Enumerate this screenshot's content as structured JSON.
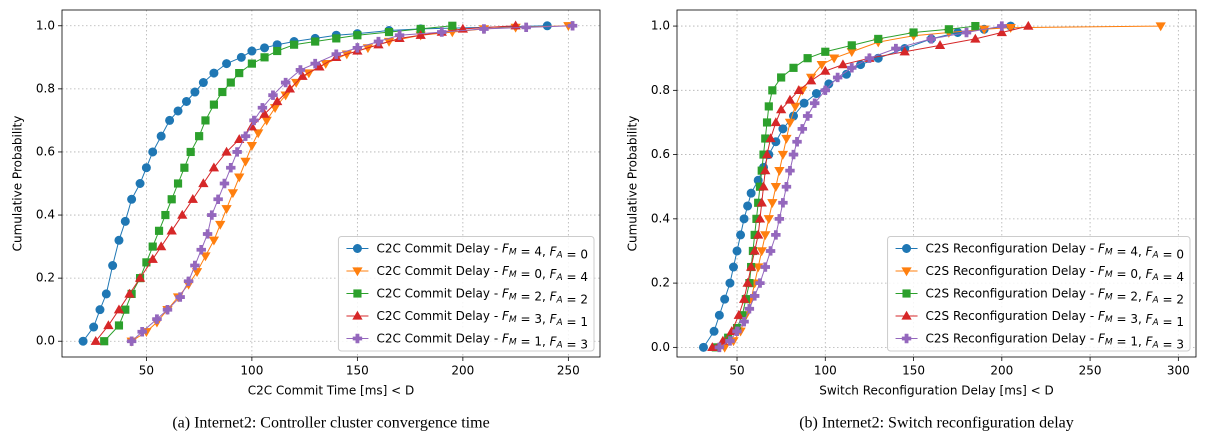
{
  "chart_data": [
    {
      "type": "line",
      "x_label": "C2C Commit Time [ms] < D",
      "y_label": "Cumulative Probability",
      "caption": "(a) Internet2: Controller cluster convergence time",
      "xlim": [
        10,
        265
      ],
      "ylim": [
        -0.05,
        1.05
      ],
      "xticks": [
        50,
        100,
        150,
        200,
        250
      ],
      "yticks": [
        {
          "value": 0,
          "label": "0.0"
        },
        0.2,
        0.4,
        0.6,
        0.8,
        {
          "value": 1,
          "label": "1.0"
        }
      ],
      "grid": true,
      "legend": "lower right",
      "series": [
        {
          "name": "C2C Commit Delay - F_M = 4, F_A = 0",
          "color": "#1f77b4",
          "marker": "o",
          "x": [
            20,
            25,
            28,
            31,
            34,
            37,
            40,
            43,
            47,
            50,
            53,
            57,
            61,
            65,
            69,
            73,
            77,
            82,
            88,
            95,
            100,
            106,
            112,
            120,
            130,
            140,
            150,
            165,
            180,
            240
          ],
          "values": [
            0,
            0.045,
            0.1,
            0.15,
            0.24,
            0.32,
            0.38,
            0.45,
            0.5,
            0.55,
            0.6,
            0.65,
            0.7,
            0.73,
            0.76,
            0.79,
            0.82,
            0.85,
            0.88,
            0.9,
            0.92,
            0.93,
            0.94,
            0.95,
            0.96,
            0.97,
            0.975,
            0.985,
            0.99,
            1.0
          ]
        },
        {
          "name": "C2C Commit Delay - F_M = 0, F_A = 4",
          "color": "#ff7f0e",
          "marker": "v",
          "x": [
            43,
            50,
            55,
            60,
            65,
            70,
            74,
            78,
            82,
            85,
            88,
            91,
            94,
            97,
            100,
            103,
            107,
            111,
            116,
            121,
            127,
            135,
            145,
            155,
            165,
            180,
            195,
            210,
            225,
            250
          ],
          "values": [
            0,
            0.03,
            0.06,
            0.1,
            0.14,
            0.18,
            0.22,
            0.27,
            0.32,
            0.37,
            0.42,
            0.47,
            0.52,
            0.57,
            0.62,
            0.66,
            0.7,
            0.74,
            0.78,
            0.82,
            0.85,
            0.88,
            0.91,
            0.93,
            0.95,
            0.97,
            0.98,
            0.99,
            0.995,
            1.0
          ]
        },
        {
          "name": "C2C Commit Delay - F_M = 2, F_A = 2",
          "color": "#2ca02c",
          "marker": "s",
          "x": [
            30,
            37,
            40,
            43,
            47,
            50,
            53,
            56,
            59,
            62,
            65,
            68,
            71,
            75,
            78,
            82,
            86,
            90,
            94,
            100,
            106,
            112,
            120,
            130,
            140,
            150,
            165,
            180,
            195
          ],
          "values": [
            0,
            0.05,
            0.1,
            0.15,
            0.2,
            0.25,
            0.3,
            0.35,
            0.4,
            0.45,
            0.5,
            0.55,
            0.6,
            0.65,
            0.7,
            0.75,
            0.79,
            0.82,
            0.85,
            0.88,
            0.9,
            0.92,
            0.94,
            0.95,
            0.96,
            0.97,
            0.98,
            0.99,
            1.0
          ]
        },
        {
          "name": "C2C Commit Delay - F_M = 3, F_A = 1",
          "color": "#d62728",
          "marker": "^",
          "x": [
            26,
            32,
            37,
            42,
            47,
            53,
            57,
            62,
            67,
            72,
            77,
            82,
            88,
            94,
            100,
            106,
            112,
            118,
            124,
            132,
            140,
            150,
            160,
            170,
            180,
            190,
            200,
            225
          ],
          "values": [
            0,
            0.05,
            0.1,
            0.15,
            0.2,
            0.26,
            0.3,
            0.35,
            0.4,
            0.45,
            0.5,
            0.55,
            0.6,
            0.64,
            0.68,
            0.72,
            0.76,
            0.8,
            0.84,
            0.87,
            0.9,
            0.92,
            0.94,
            0.96,
            0.97,
            0.98,
            0.99,
            1.0
          ]
        },
        {
          "name": "C2C Commit Delay - F_M = 1, F_A = 3",
          "color": "#9467bd",
          "marker": "P",
          "x": [
            43,
            48,
            55,
            60,
            66,
            70,
            73,
            76,
            79,
            81,
            84,
            87,
            90,
            93,
            97,
            101,
            105,
            110,
            116,
            123,
            130,
            140,
            150,
            160,
            170,
            190,
            210,
            230,
            252
          ],
          "values": [
            0,
            0.03,
            0.07,
            0.1,
            0.14,
            0.19,
            0.24,
            0.29,
            0.34,
            0.4,
            0.45,
            0.5,
            0.55,
            0.6,
            0.65,
            0.7,
            0.74,
            0.78,
            0.82,
            0.86,
            0.88,
            0.91,
            0.93,
            0.95,
            0.97,
            0.98,
            0.99,
            0.995,
            1.0
          ]
        }
      ]
    },
    {
      "type": "line",
      "x_label": "Switch Reconfiguration Delay [ms] < D",
      "y_label": "Cumulative Probability",
      "caption": "(b) Internet2: Switch reconfiguration delay",
      "xlim": [
        16,
        310
      ],
      "ylim": [
        -0.03,
        1.05
      ],
      "xticks": [
        50,
        100,
        150,
        200,
        250,
        300
      ],
      "yticks": [
        {
          "value": 0,
          "label": "0.0"
        },
        0.2,
        0.4,
        0.6,
        0.8,
        {
          "value": 1,
          "label": "1.0"
        }
      ],
      "grid": true,
      "legend": "lower right",
      "series": [
        {
          "name": "C2S Reconfiguration Delay - F_M = 4, F_A = 0",
          "color": "#1f77b4",
          "marker": "o",
          "x": [
            31,
            37,
            40,
            43,
            46,
            48,
            50,
            52,
            54,
            56,
            58,
            62,
            65,
            68,
            72,
            76,
            82,
            88,
            95,
            102,
            112,
            120,
            130,
            145,
            160,
            175,
            190,
            205
          ],
          "values": [
            0,
            0.05,
            0.1,
            0.15,
            0.2,
            0.25,
            0.3,
            0.35,
            0.4,
            0.44,
            0.48,
            0.52,
            0.56,
            0.6,
            0.64,
            0.68,
            0.72,
            0.76,
            0.79,
            0.82,
            0.85,
            0.88,
            0.9,
            0.93,
            0.96,
            0.98,
            0.99,
            1.0
          ]
        },
        {
          "name": "C2S Reconfiguration Delay - F_M = 0, F_A = 4",
          "color": "#ff7f0e",
          "marker": "v",
          "x": [
            43,
            48,
            52,
            55,
            58,
            60,
            62,
            64,
            66,
            68,
            70,
            72,
            74,
            76,
            78,
            80,
            83,
            87,
            92,
            98,
            105,
            115,
            130,
            150,
            170,
            190,
            205,
            290
          ],
          "values": [
            0,
            0.02,
            0.05,
            0.1,
            0.15,
            0.2,
            0.25,
            0.3,
            0.35,
            0.4,
            0.45,
            0.5,
            0.55,
            0.6,
            0.65,
            0.7,
            0.75,
            0.8,
            0.84,
            0.88,
            0.9,
            0.92,
            0.95,
            0.97,
            0.98,
            0.99,
            0.995,
            1.0
          ]
        },
        {
          "name": "C2S Reconfiguration Delay - F_M = 2, F_A = 2",
          "color": "#2ca02c",
          "marker": "s",
          "x": [
            38,
            45,
            50,
            53,
            55,
            57,
            58,
            59,
            60,
            61,
            62,
            63,
            64,
            65,
            66,
            67,
            68,
            70,
            75,
            82,
            90,
            100,
            115,
            130,
            150,
            170,
            185
          ],
          "values": [
            0,
            0.03,
            0.06,
            0.1,
            0.15,
            0.2,
            0.25,
            0.3,
            0.35,
            0.4,
            0.45,
            0.5,
            0.55,
            0.6,
            0.65,
            0.7,
            0.75,
            0.8,
            0.84,
            0.87,
            0.9,
            0.92,
            0.94,
            0.96,
            0.98,
            0.99,
            1.0
          ]
        },
        {
          "name": "C2S Reconfiguration Delay - F_M = 3, F_A = 1",
          "color": "#d62728",
          "marker": "^",
          "x": [
            36,
            42,
            47,
            51,
            54,
            56,
            58,
            60,
            62,
            63,
            64,
            65,
            66,
            67,
            69,
            72,
            75,
            80,
            85,
            92,
            100,
            110,
            125,
            145,
            165,
            185,
            200,
            215
          ],
          "values": [
            0,
            0.02,
            0.05,
            0.1,
            0.15,
            0.2,
            0.25,
            0.3,
            0.35,
            0.4,
            0.45,
            0.5,
            0.55,
            0.6,
            0.65,
            0.7,
            0.74,
            0.77,
            0.8,
            0.83,
            0.86,
            0.88,
            0.9,
            0.92,
            0.94,
            0.96,
            0.98,
            1.0
          ]
        },
        {
          "name": "C2S Reconfiguration Delay - F_M = 1, F_A = 3",
          "color": "#9467bd",
          "marker": "P",
          "x": [
            40,
            46,
            50,
            54,
            57,
            60,
            63,
            66,
            69,
            72,
            74,
            76,
            78,
            80,
            82,
            84,
            87,
            90,
            94,
            100,
            107,
            115,
            125,
            140,
            160,
            180,
            200
          ],
          "values": [
            0,
            0.02,
            0.05,
            0.08,
            0.12,
            0.16,
            0.2,
            0.25,
            0.3,
            0.35,
            0.4,
            0.45,
            0.5,
            0.55,
            0.6,
            0.64,
            0.68,
            0.72,
            0.76,
            0.8,
            0.84,
            0.87,
            0.9,
            0.93,
            0.96,
            0.98,
            1.0
          ]
        }
      ]
    }
  ]
}
